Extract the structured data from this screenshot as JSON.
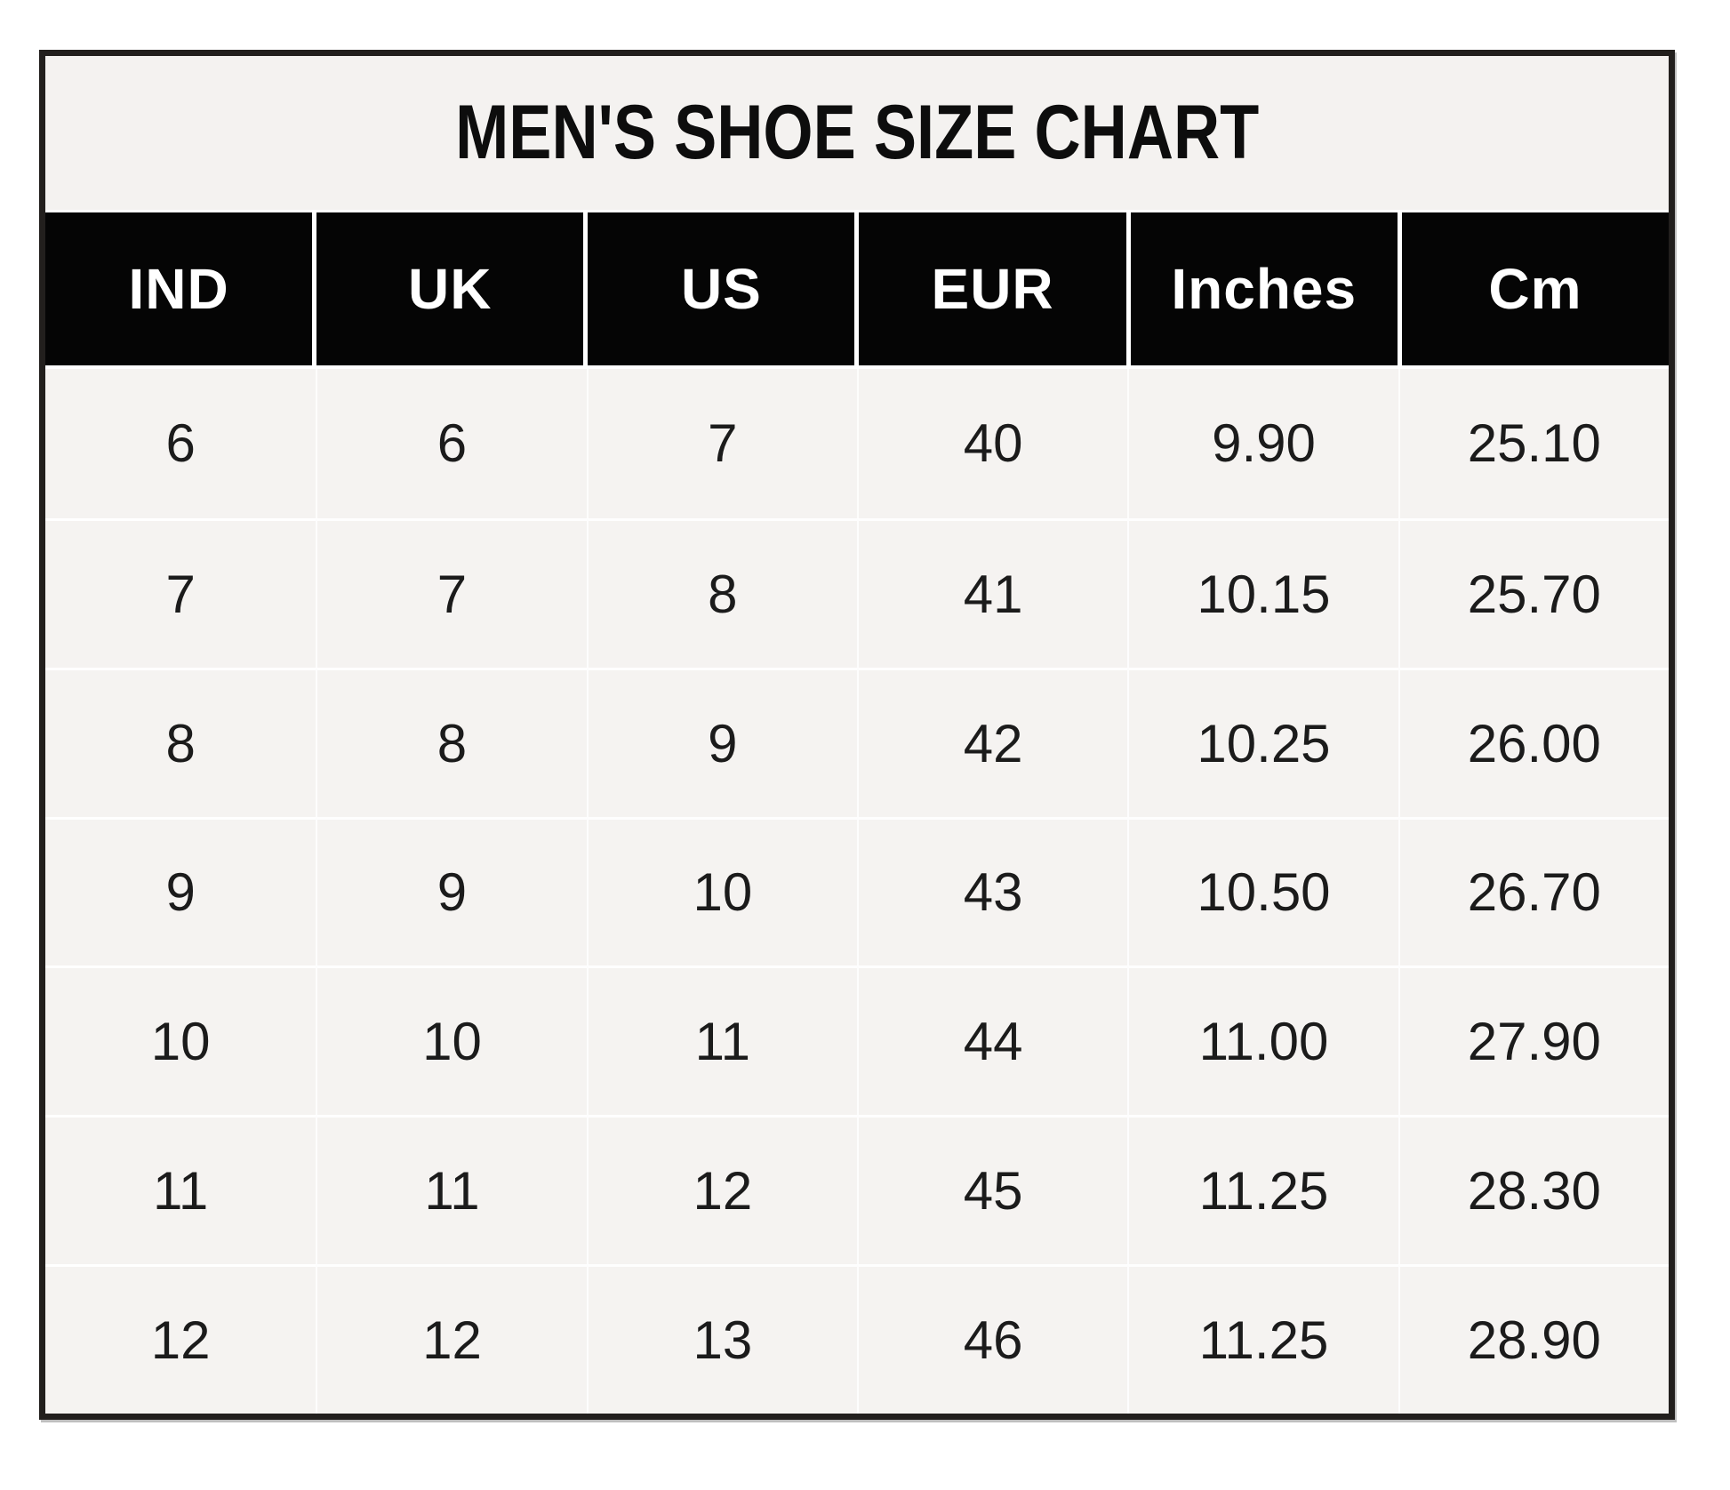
{
  "chart_data": {
    "type": "table",
    "title": "MEN'S SHOE SIZE CHART",
    "columns": [
      "IND",
      "UK",
      "US",
      "EUR",
      "Inches",
      "Cm"
    ],
    "rows": [
      [
        "6",
        "6",
        "7",
        "40",
        "9.90",
        "25.10"
      ],
      [
        "7",
        "7",
        "8",
        "41",
        "10.15",
        "25.70"
      ],
      [
        "8",
        "8",
        "9",
        "42",
        "10.25",
        "26.00"
      ],
      [
        "9",
        "9",
        "10",
        "43",
        "10.50",
        "26.70"
      ],
      [
        "10",
        "10",
        "11",
        "44",
        "11.00",
        "27.90"
      ],
      [
        "11",
        "11",
        "12",
        "45",
        "11.25",
        "28.30"
      ],
      [
        "12",
        "12",
        "13",
        "46",
        "11.25",
        "28.90"
      ]
    ]
  },
  "colors": {
    "page_bg": "#ffffff",
    "table_bg": "#f5f3f1",
    "frame_border": "#221f1d",
    "header_bg": "#050505",
    "header_text": "#ffffff",
    "body_text": "#1b1b1b",
    "separator": "#ffffff"
  }
}
